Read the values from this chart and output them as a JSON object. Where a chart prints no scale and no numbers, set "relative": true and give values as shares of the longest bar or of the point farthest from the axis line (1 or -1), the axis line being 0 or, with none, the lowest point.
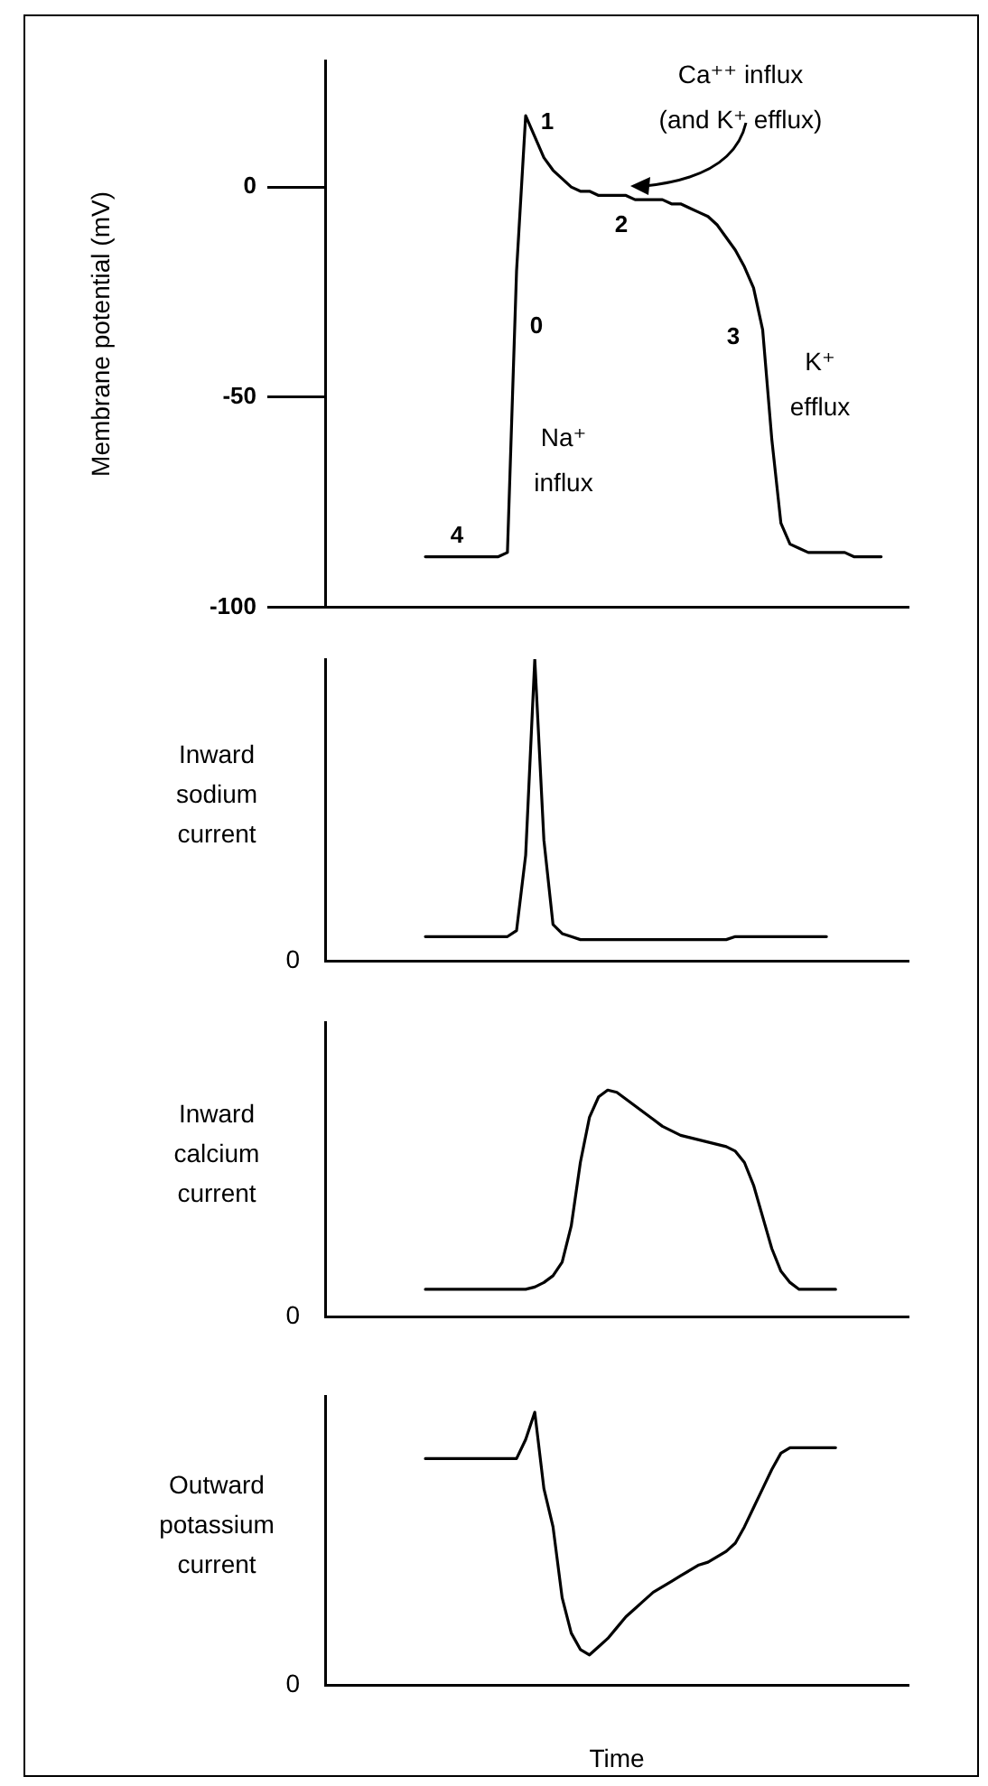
{
  "chart_data": [
    {
      "type": "line",
      "ylabel": "Membrane potential (mV)",
      "ylim": [
        -100,
        30
      ],
      "yticks": [
        0,
        -50,
        -100
      ],
      "tick_labels": "y",
      "color": "#000000",
      "categories": [
        null,
        null,
        null,
        null,
        null,
        null,
        null,
        null,
        null,
        null,
        null,
        null,
        null,
        null,
        null,
        null,
        null,
        null,
        null,
        null,
        null,
        null,
        null,
        null,
        null,
        null,
        null,
        null,
        null,
        null,
        null,
        null,
        null,
        null,
        null,
        null,
        null,
        null,
        null,
        null,
        null,
        null,
        null,
        null,
        null,
        null,
        null,
        null,
        null,
        null,
        null,
        null,
        null,
        null,
        null,
        null,
        null,
        null,
        null,
        null,
        null,
        null,
        null,
        null,
        null
      ],
      "values": [
        null,
        null,
        null,
        null,
        null,
        null,
        null,
        null,
        null,
        null,
        null,
        -88,
        -88,
        -88,
        -88,
        -88,
        -88,
        -88,
        -88,
        -88,
        -87,
        -20,
        17,
        12,
        7,
        4,
        2,
        0,
        -1,
        -1,
        -2,
        -2,
        -2,
        -2,
        -3,
        -3,
        -3,
        -3,
        -4,
        -4,
        -5,
        -6,
        -7,
        -9,
        -12,
        -15,
        -19,
        -24,
        -34,
        -60,
        -80,
        -85,
        -86,
        -87,
        -87,
        -87,
        -87,
        -87,
        -88,
        -88,
        -88,
        -88,
        null,
        null,
        null
      ],
      "annotations": [
        "Ca⁺⁺ influx\n(and K⁺ efflux)",
        "1",
        "2",
        "0",
        "3",
        "4",
        "Na⁺\ninflux",
        "K⁺\nefflux"
      ]
    },
    {
      "type": "line",
      "ylabel": "Inward\nsodium\ncurrent",
      "relative": true,
      "tick_labels": false,
      "color": "#000000",
      "categories": [
        null,
        null,
        null,
        null,
        null,
        null,
        null,
        null,
        null,
        null,
        null,
        null,
        null,
        null,
        null,
        null,
        null,
        null,
        null,
        null,
        null,
        null,
        null,
        null,
        null,
        null,
        null,
        null,
        null,
        null,
        null,
        null,
        null,
        null,
        null,
        null,
        null,
        null,
        null,
        null,
        null,
        null,
        null,
        null,
        null,
        null,
        null,
        null,
        null,
        null,
        null,
        null,
        null,
        null,
        null,
        null,
        null,
        null,
        null,
        null,
        null,
        null,
        null,
        null,
        null
      ],
      "values": [
        null,
        null,
        null,
        null,
        null,
        null,
        null,
        null,
        null,
        null,
        null,
        0.08,
        0.08,
        0.08,
        0.08,
        0.08,
        0.08,
        0.08,
        0.08,
        0.08,
        0.08,
        0.1,
        0.35,
        1,
        0.4,
        0.12,
        0.09,
        0.08,
        0.07,
        0.07,
        0.07,
        0.07,
        0.07,
        0.07,
        0.07,
        0.07,
        0.07,
        0.07,
        0.07,
        0.07,
        0.07,
        0.07,
        0.07,
        0.07,
        0.07,
        0.08,
        0.08,
        0.08,
        0.08,
        0.08,
        0.08,
        0.08,
        0.08,
        0.08,
        0.08,
        0.08,
        null,
        null,
        null,
        null,
        null,
        null,
        null,
        null,
        null
      ],
      "annotations": [
        "0"
      ]
    },
    {
      "type": "line",
      "ylabel": "Inward\ncalcium\ncurrent",
      "relative": true,
      "tick_labels": false,
      "color": "#000000",
      "categories": [
        null,
        null,
        null,
        null,
        null,
        null,
        null,
        null,
        null,
        null,
        null,
        null,
        null,
        null,
        null,
        null,
        null,
        null,
        null,
        null,
        null,
        null,
        null,
        null,
        null,
        null,
        null,
        null,
        null,
        null,
        null,
        null,
        null,
        null,
        null,
        null,
        null,
        null,
        null,
        null,
        null,
        null,
        null,
        null,
        null,
        null,
        null,
        null,
        null,
        null,
        null,
        null,
        null,
        null,
        null,
        null,
        null,
        null,
        null,
        null,
        null,
        null,
        null,
        null,
        null
      ],
      "values": [
        null,
        null,
        null,
        null,
        null,
        null,
        null,
        null,
        null,
        null,
        null,
        0.12,
        0.12,
        0.12,
        0.12,
        0.12,
        0.12,
        0.12,
        0.12,
        0.12,
        0.12,
        0.12,
        0.12,
        0.13,
        0.15,
        0.18,
        0.24,
        0.4,
        0.68,
        0.88,
        0.97,
        1,
        0.99,
        0.96,
        0.93,
        0.9,
        0.87,
        0.84,
        0.82,
        0.8,
        0.79,
        0.78,
        0.77,
        0.76,
        0.75,
        0.73,
        0.68,
        0.58,
        0.44,
        0.3,
        0.2,
        0.15,
        0.12,
        0.12,
        0.12,
        0.12,
        0.12,
        null,
        null,
        null,
        null,
        null,
        null,
        null,
        null
      ],
      "annotations": [
        "0"
      ]
    },
    {
      "type": "line",
      "ylabel": "Outward\npotassium\ncurrent",
      "xlabel": "Time",
      "relative": true,
      "tick_labels": false,
      "color": "#000000",
      "categories": [
        null,
        null,
        null,
        null,
        null,
        null,
        null,
        null,
        null,
        null,
        null,
        null,
        null,
        null,
        null,
        null,
        null,
        null,
        null,
        null,
        null,
        null,
        null,
        null,
        null,
        null,
        null,
        null,
        null,
        null,
        null,
        null,
        null,
        null,
        null,
        null,
        null,
        null,
        null,
        null,
        null,
        null,
        null,
        null,
        null,
        null,
        null,
        null,
        null,
        null,
        null,
        null,
        null,
        null,
        null,
        null,
        null,
        null,
        null,
        null,
        null,
        null,
        null,
        null,
        null
      ],
      "values": [
        null,
        null,
        null,
        null,
        null,
        null,
        null,
        null,
        null,
        null,
        null,
        0.83,
        0.83,
        0.83,
        0.83,
        0.83,
        0.83,
        0.83,
        0.83,
        0.83,
        0.83,
        0.83,
        0.9,
        1,
        0.72,
        0.58,
        0.32,
        0.19,
        0.13,
        0.11,
        0.14,
        0.17,
        0.21,
        0.25,
        0.28,
        0.31,
        0.34,
        0.36,
        0.38,
        0.4,
        0.42,
        0.44,
        0.45,
        0.47,
        0.49,
        0.52,
        0.58,
        0.65,
        0.72,
        0.79,
        0.85,
        0.87,
        0.87,
        0.87,
        0.87,
        0.87,
        0.87,
        null,
        null,
        null,
        null,
        null,
        null,
        null,
        null
      ],
      "annotations": [
        "0"
      ]
    }
  ]
}
